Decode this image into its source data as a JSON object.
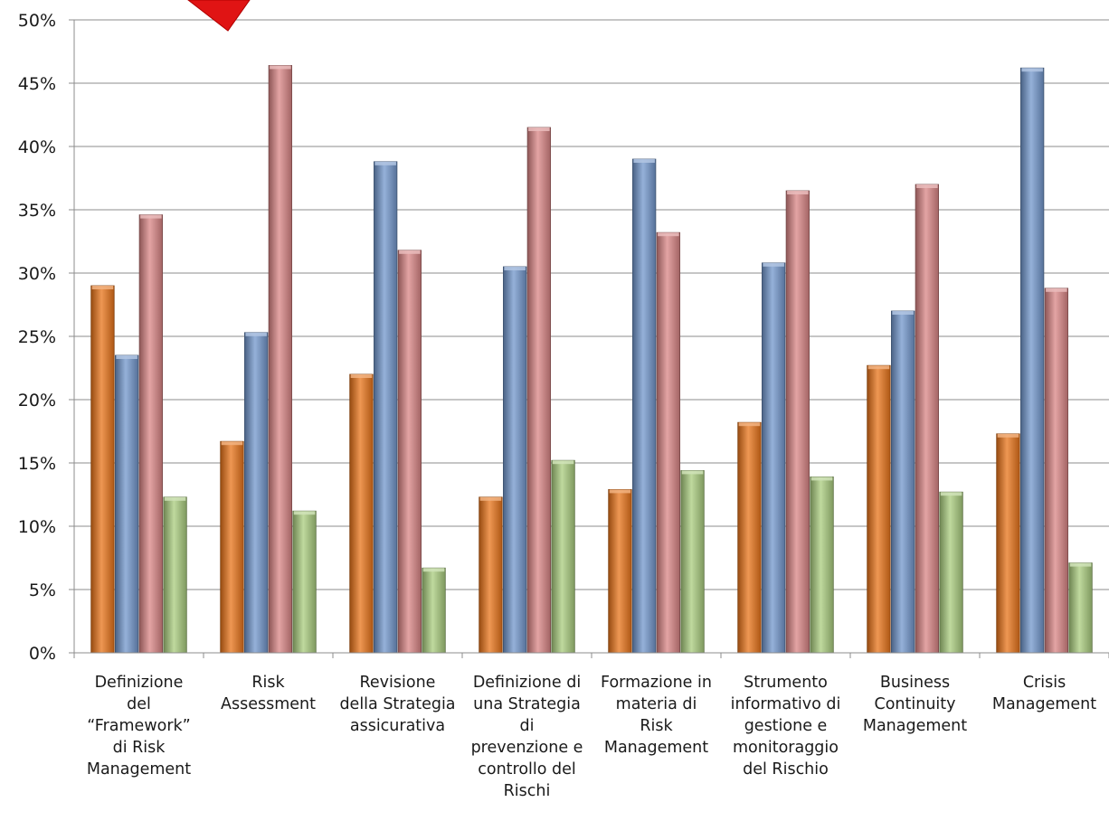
{
  "chart_data": {
    "type": "bar",
    "categories": [
      [
        "Definizione",
        "del",
        "“Framework”",
        "di Risk",
        "Management"
      ],
      [
        "Risk",
        "Assessment"
      ],
      [
        "Revisione",
        "della Strategia",
        "assicurativa"
      ],
      [
        "Definizione di",
        "una Strategia",
        "di",
        "prevenzione e",
        "controllo del",
        "Rischi"
      ],
      [
        "Formazione in",
        "materia di",
        "Risk",
        "Management"
      ],
      [
        "Strumento",
        "informativo di",
        "gestione e",
        "monitoraggio",
        "del Rischio"
      ],
      [
        "Business",
        "Continuity",
        "Management"
      ],
      [
        "Crisis",
        "Management"
      ]
    ],
    "series": [
      {
        "color": "#e8741a",
        "values": [
          29.0,
          16.7,
          22.0,
          12.3,
          12.9,
          18.2,
          22.7,
          17.3
        ]
      },
      {
        "color": "#7297cc",
        "values": [
          23.5,
          25.3,
          38.8,
          30.5,
          39.0,
          30.8,
          27.0,
          46.2
        ]
      },
      {
        "color": "#d98585",
        "values": [
          34.6,
          46.4,
          31.8,
          41.5,
          33.2,
          36.5,
          37.0,
          28.8
        ]
      },
      {
        "color": "#a9cc7e",
        "values": [
          12.3,
          11.2,
          6.7,
          15.2,
          14.4,
          13.9,
          12.7,
          7.1
        ]
      }
    ],
    "yticks": [
      "0%",
      "5%",
      "10%",
      "15%",
      "20%",
      "25%",
      "30%",
      "35%",
      "40%",
      "45%",
      "50%"
    ],
    "ylim": [
      0,
      50
    ],
    "grid": true,
    "legend": "none"
  }
}
